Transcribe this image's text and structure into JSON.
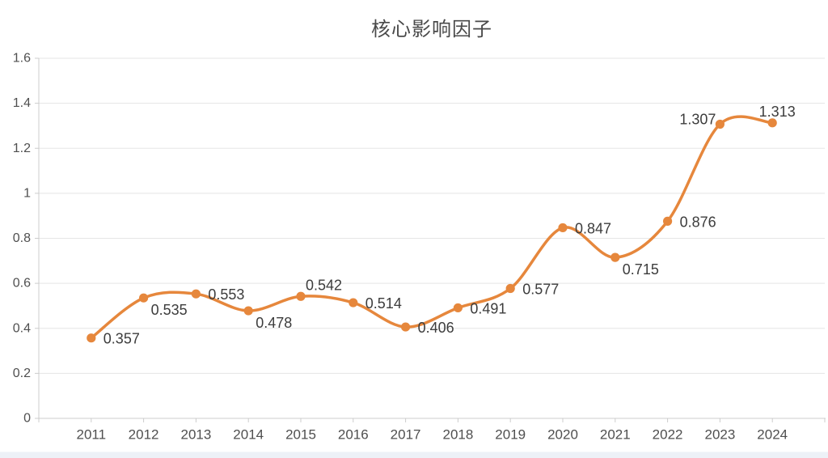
{
  "title": "核心影响因子",
  "colors": {
    "line": "#e6873c",
    "marker": "#e6873c",
    "grid": "#e5e5e5",
    "axis_line": "#cccccc",
    "tick": "#cccccc",
    "axis_text": "#4f4f4f",
    "point_label_text": "#3c3c3c",
    "title_text": "#494949",
    "background": "#ffffff",
    "bottom_strip": "#edf1f7"
  },
  "chart_data": {
    "type": "line",
    "title": "核心影响因子",
    "smooth": true,
    "grid": true,
    "legend_position": "none",
    "categories": [
      "2011",
      "2012",
      "2013",
      "2014",
      "2015",
      "2016",
      "2017",
      "2018",
      "2019",
      "2020",
      "2021",
      "2022",
      "2023",
      "2024"
    ],
    "series": [
      {
        "name": "核心影响因子",
        "values": [
          0.357,
          0.535,
          0.553,
          0.478,
          0.542,
          0.514,
          0.406,
          0.491,
          0.577,
          0.847,
          0.715,
          0.876,
          1.307,
          1.313
        ]
      }
    ],
    "point_labels": [
      "0.357",
      "0.535",
      "0.553",
      "0.478",
      "0.542",
      "0.514",
      "0.406",
      "0.491",
      "0.577",
      "0.847",
      "0.715",
      "0.876",
      "1.307",
      "1.313"
    ],
    "label_placement": [
      "right",
      "below-right",
      "right",
      "below-right",
      "above-right",
      "right",
      "right",
      "right",
      "right",
      "right",
      "below-right",
      "right",
      "above-left",
      "above"
    ],
    "xlabel": "",
    "ylabel": "",
    "ylim": [
      0,
      1.6
    ],
    "ytick_step": 0.2,
    "yticks": [
      "0",
      "0.2",
      "0.4",
      "0.6",
      "0.8",
      "1",
      "1.2",
      "1.4",
      "1.6"
    ]
  }
}
